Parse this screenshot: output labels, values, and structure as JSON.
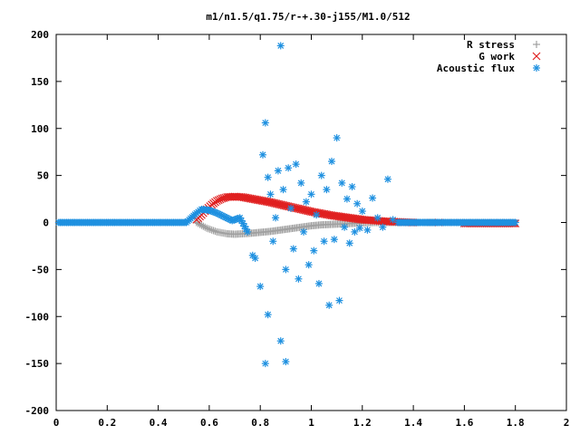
{
  "chart_data": {
    "type": "scatter",
    "title": "m1/n1.5/q1.75/r-+.30-j155/M1.0/512",
    "xlim": [
      0,
      2
    ],
    "ylim": [
      -200,
      200
    ],
    "xticks": [
      0,
      0.2,
      0.4,
      0.6,
      0.8,
      1,
      1.2,
      1.4,
      1.6,
      1.8,
      2
    ],
    "xtick_labels": [
      "0",
      "0.2",
      "0.4",
      "0.6",
      "0.8",
      "1",
      "1.2",
      "1.4",
      "1.6",
      "1.8",
      "2"
    ],
    "yticks": [
      -200,
      -150,
      -100,
      -50,
      0,
      50,
      100,
      150,
      200
    ],
    "ytick_labels": [
      "-200",
      "-150",
      "-100",
      "-50",
      "0",
      "50",
      "100",
      "150",
      "200"
    ],
    "legend_position": "top-right",
    "series": [
      {
        "name": "R stress",
        "marker": "plus",
        "color": "#a0a0a0",
        "points": [
          [
            0.55,
            0
          ],
          [
            0.57,
            -3
          ],
          [
            0.59,
            -6
          ],
          [
            0.61,
            -8
          ],
          [
            0.63,
            -10
          ],
          [
            0.65,
            -11
          ],
          [
            0.67,
            -12
          ],
          [
            0.7,
            -12.5
          ],
          [
            0.73,
            -12
          ],
          [
            0.76,
            -11.5
          ],
          [
            0.8,
            -10.5
          ],
          [
            0.84,
            -9.5
          ],
          [
            0.88,
            -8
          ],
          [
            0.92,
            -6.5
          ],
          [
            0.96,
            -5
          ],
          [
            1.0,
            -3.5
          ],
          [
            1.04,
            -2.5
          ],
          [
            1.08,
            -2
          ],
          [
            1.12,
            -1.5
          ],
          [
            1.16,
            -1
          ],
          [
            1.2,
            -0.5
          ],
          [
            1.25,
            0
          ],
          [
            1.3,
            0
          ],
          [
            1.35,
            0
          ],
          [
            1.4,
            0
          ],
          [
            1.45,
            0
          ],
          [
            1.5,
            0
          ],
          [
            1.55,
            0
          ],
          [
            1.6,
            0
          ],
          [
            1.65,
            0
          ],
          [
            1.7,
            0
          ],
          [
            1.75,
            0
          ],
          [
            1.8,
            0
          ]
        ]
      },
      {
        "name": "G work",
        "marker": "cross",
        "color": "#e02020",
        "points": [
          [
            0.55,
            3
          ],
          [
            0.57,
            8
          ],
          [
            0.59,
            14
          ],
          [
            0.61,
            19
          ],
          [
            0.63,
            23
          ],
          [
            0.65,
            25.5
          ],
          [
            0.67,
            27
          ],
          [
            0.7,
            27.5
          ],
          [
            0.73,
            27
          ],
          [
            0.76,
            25.5
          ],
          [
            0.8,
            23.5
          ],
          [
            0.84,
            21.5
          ],
          [
            0.88,
            19
          ],
          [
            0.92,
            16.5
          ],
          [
            0.96,
            14
          ],
          [
            1.0,
            11.5
          ],
          [
            1.04,
            9.5
          ],
          [
            1.08,
            7.5
          ],
          [
            1.12,
            6
          ],
          [
            1.16,
            4.5
          ],
          [
            1.2,
            3
          ],
          [
            1.25,
            2
          ],
          [
            1.3,
            1
          ],
          [
            1.35,
            0.5
          ],
          [
            1.4,
            0
          ],
          [
            1.5,
            0
          ],
          [
            1.6,
            -1
          ],
          [
            1.65,
            -1
          ],
          [
            1.7,
            -1
          ],
          [
            1.75,
            -1
          ],
          [
            1.8,
            -1
          ]
        ]
      },
      {
        "name": "Acoustic flux",
        "marker": "star",
        "color": "#1e90e0",
        "points": [
          [
            0.01,
            0
          ],
          [
            0.06,
            0
          ],
          [
            0.11,
            0
          ],
          [
            0.16,
            0
          ],
          [
            0.21,
            0
          ],
          [
            0.26,
            0
          ],
          [
            0.31,
            0
          ],
          [
            0.36,
            0
          ],
          [
            0.41,
            0
          ],
          [
            0.46,
            0
          ],
          [
            0.51,
            0
          ],
          [
            0.55,
            10
          ],
          [
            0.57,
            14
          ],
          [
            0.6,
            13
          ],
          [
            0.63,
            10
          ],
          [
            0.66,
            6
          ],
          [
            0.69,
            2
          ],
          [
            0.72,
            5
          ],
          [
            0.75,
            -10
          ],
          [
            0.77,
            -35
          ],
          [
            0.78,
            -38
          ],
          [
            0.8,
            -68
          ],
          [
            0.81,
            72
          ],
          [
            0.82,
            106
          ],
          [
            0.82,
            -150
          ],
          [
            0.83,
            -98
          ],
          [
            0.83,
            48
          ],
          [
            0.84,
            30
          ],
          [
            0.85,
            -20
          ],
          [
            0.86,
            5
          ],
          [
            0.87,
            55
          ],
          [
            0.88,
            -126
          ],
          [
            0.88,
            188
          ],
          [
            0.89,
            35
          ],
          [
            0.9,
            -148
          ],
          [
            0.9,
            -50
          ],
          [
            0.91,
            58
          ],
          [
            0.92,
            15
          ],
          [
            0.93,
            -28
          ],
          [
            0.94,
            62
          ],
          [
            0.95,
            -60
          ],
          [
            0.96,
            42
          ],
          [
            0.97,
            -10
          ],
          [
            0.98,
            22
          ],
          [
            0.99,
            -45
          ],
          [
            1.0,
            30
          ],
          [
            1.01,
            -30
          ],
          [
            1.02,
            8
          ],
          [
            1.03,
            -65
          ],
          [
            1.04,
            50
          ],
          [
            1.05,
            -20
          ],
          [
            1.06,
            35
          ],
          [
            1.07,
            -88
          ],
          [
            1.08,
            65
          ],
          [
            1.09,
            -18
          ],
          [
            1.1,
            90
          ],
          [
            1.11,
            -83
          ],
          [
            1.12,
            42
          ],
          [
            1.13,
            -5
          ],
          [
            1.14,
            25
          ],
          [
            1.15,
            -22
          ],
          [
            1.16,
            38
          ],
          [
            1.17,
            -10
          ],
          [
            1.18,
            20
          ],
          [
            1.19,
            -6
          ],
          [
            1.2,
            12
          ],
          [
            1.22,
            -8
          ],
          [
            1.24,
            26
          ],
          [
            1.26,
            5
          ],
          [
            1.28,
            -5
          ],
          [
            1.3,
            46
          ],
          [
            1.32,
            3
          ],
          [
            1.34,
            0
          ],
          [
            1.38,
            0
          ],
          [
            1.42,
            0
          ],
          [
            1.46,
            0
          ],
          [
            1.5,
            0
          ],
          [
            1.55,
            0
          ],
          [
            1.6,
            0
          ],
          [
            1.65,
            0
          ],
          [
            1.7,
            0
          ],
          [
            1.75,
            0
          ],
          [
            1.8,
            0
          ]
        ]
      }
    ]
  }
}
